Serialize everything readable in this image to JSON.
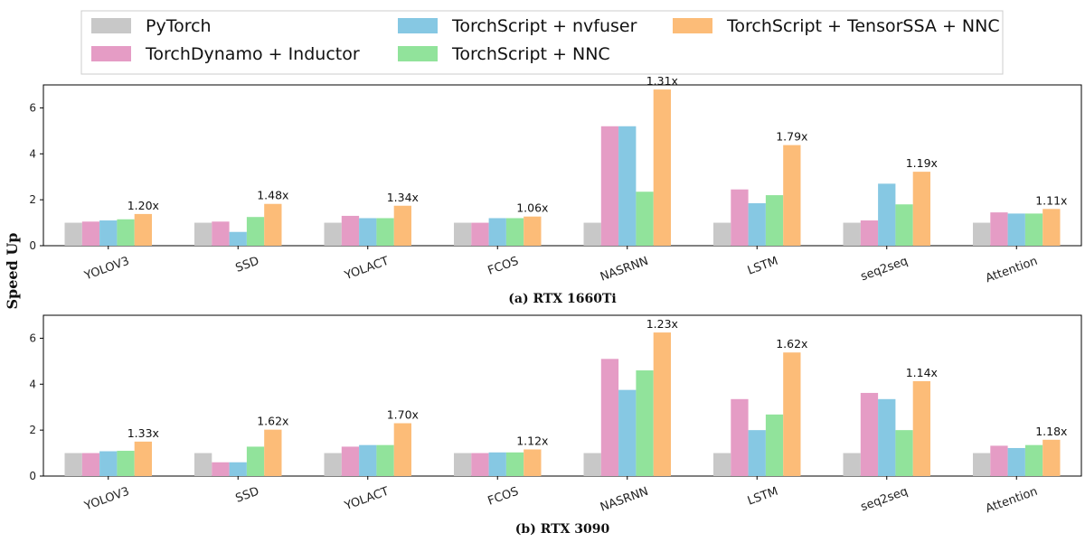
{
  "chart_data": [
    {
      "type": "bar",
      "caption": "(a) RTX 1660Ti",
      "categories": [
        "YOLOV3",
        "SSD",
        "YOLACT",
        "FCOS",
        "NASRNN",
        "LSTM",
        "seq2seq",
        "Attention"
      ],
      "series": [
        {
          "name": "PyTorch",
          "color": "#c8c8c8",
          "values": [
            1.0,
            1.0,
            1.0,
            1.0,
            1.0,
            1.0,
            1.0,
            1.0
          ]
        },
        {
          "name": "TorchDynamo + Inductor",
          "color": "#e59cc5",
          "values": [
            1.05,
            1.05,
            1.3,
            1.0,
            5.2,
            2.45,
            1.1,
            1.45
          ]
        },
        {
          "name": "TorchScript + nvfuser",
          "color": "#86c8e3",
          "values": [
            1.1,
            0.6,
            1.2,
            1.2,
            5.2,
            1.85,
            2.7,
            1.4
          ]
        },
        {
          "name": "TorchScript + NNC",
          "color": "#91e39b",
          "values": [
            1.15,
            1.25,
            1.2,
            1.2,
            2.35,
            2.2,
            1.8,
            1.4
          ]
        },
        {
          "name": "TorchScript + TensorSSA + NNC",
          "color": "#fcbc78",
          "values": [
            1.38,
            1.82,
            1.74,
            1.27,
            6.8,
            4.38,
            3.22,
            1.6
          ]
        }
      ],
      "annotations": [
        "1.20x",
        "1.48x",
        "1.34x",
        "1.06x",
        "1.31x",
        "1.79x",
        "1.19x",
        "1.11x"
      ],
      "ylim": [
        0,
        7
      ],
      "yticks": [
        0,
        2,
        4,
        6
      ]
    },
    {
      "type": "bar",
      "caption": "(b) RTX 3090",
      "categories": [
        "YOLOV3",
        "SSD",
        "YOLACT",
        "FCOS",
        "NASRNN",
        "LSTM",
        "seq2seq",
        "Attention"
      ],
      "series": [
        {
          "name": "PyTorch",
          "color": "#c8c8c8",
          "values": [
            1.0,
            1.0,
            1.0,
            1.0,
            1.0,
            1.0,
            1.0,
            1.0
          ]
        },
        {
          "name": "TorchDynamo + Inductor",
          "color": "#e59cc5",
          "values": [
            1.0,
            0.6,
            1.28,
            1.0,
            5.1,
            3.35,
            3.62,
            1.32
          ]
        },
        {
          "name": "TorchScript + nvfuser",
          "color": "#86c8e3",
          "values": [
            1.08,
            0.6,
            1.35,
            1.03,
            3.75,
            2.0,
            3.35,
            1.22
          ]
        },
        {
          "name": "TorchScript + NNC",
          "color": "#91e39b",
          "values": [
            1.1,
            1.28,
            1.35,
            1.03,
            4.6,
            2.68,
            2.0,
            1.35
          ]
        },
        {
          "name": "TorchScript + TensorSSA + NNC",
          "color": "#fcbc78",
          "values": [
            1.5,
            2.02,
            2.3,
            1.16,
            6.25,
            5.38,
            4.13,
            1.58
          ]
        }
      ],
      "annotations": [
        "1.33x",
        "1.62x",
        "1.70x",
        "1.12x",
        "1.23x",
        "1.62x",
        "1.14x",
        "1.18x"
      ],
      "ylim": [
        0,
        7
      ],
      "yticks": [
        0,
        2,
        4,
        6
      ]
    }
  ],
  "ylabel": "Speed Up",
  "legend": {
    "placement": "top-center",
    "entries": [
      "PyTorch",
      "TorchDynamo + Inductor",
      "TorchScript + nvfuser",
      "TorchScript + NNC",
      "TorchScript + TensorSSA + NNC"
    ]
  }
}
